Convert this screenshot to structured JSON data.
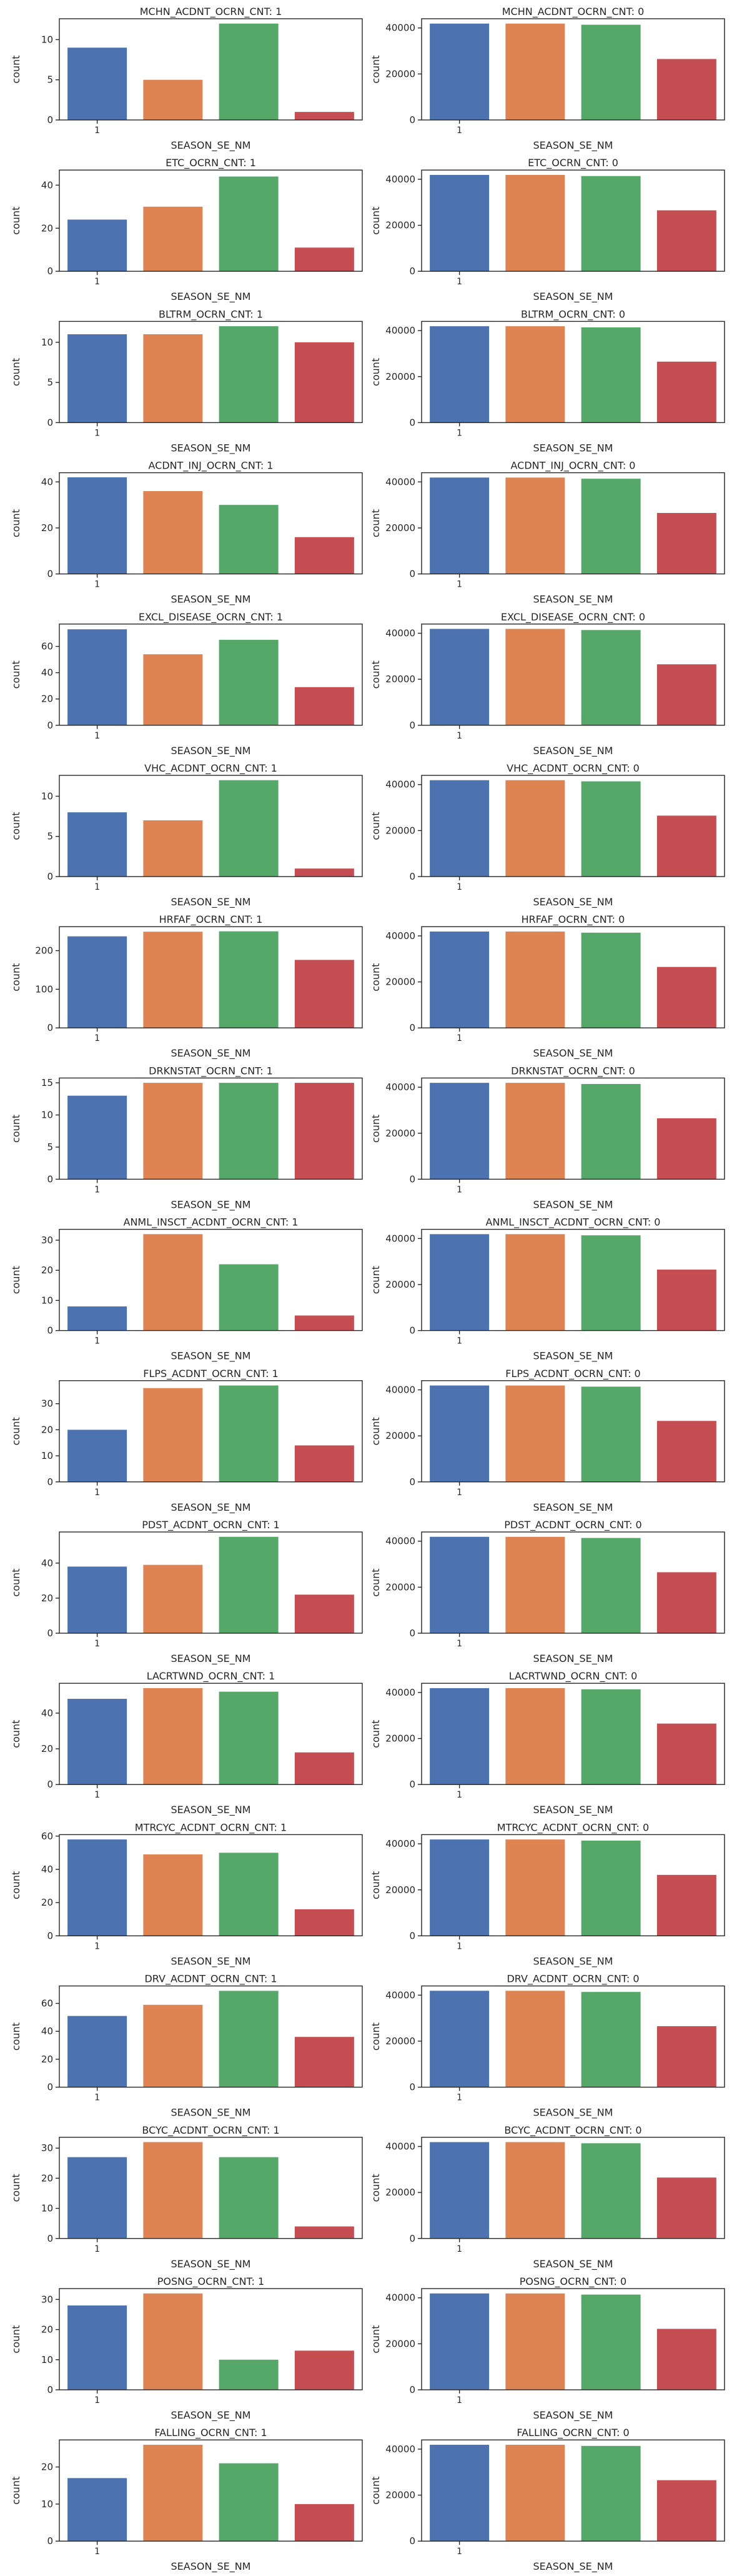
{
  "palette": [
    "#4c72b0",
    "#dd8452",
    "#55a868",
    "#c44e52"
  ],
  "chart_data": [
    {
      "type": "bar",
      "title": "MCHN_ACDNT_OCRN_CNT: 1",
      "xlabel": "SEASON_SE_NM",
      "ylabel": "count",
      "xtick_labels": [
        "1"
      ],
      "yticks": [
        "0",
        "5",
        "10"
      ],
      "ylim": [
        0,
        12.6
      ],
      "values": [
        9,
        5,
        12,
        1
      ]
    },
    {
      "type": "bar",
      "title": "MCHN_ACDNT_OCRN_CNT: 0",
      "xlabel": "SEASON_SE_NM",
      "ylabel": "count",
      "xtick_labels": [
        "1"
      ],
      "yticks": [
        "0",
        "20000",
        "40000"
      ],
      "ylim": [
        0,
        44000
      ],
      "values": [
        41900,
        41900,
        41400,
        26500
      ]
    },
    {
      "type": "bar",
      "title": "ETC_OCRN_CNT: 1",
      "xlabel": "SEASON_SE_NM",
      "ylabel": "count",
      "xtick_labels": [
        "1"
      ],
      "yticks": [
        "0",
        "20",
        "40"
      ],
      "ylim": [
        0,
        47
      ],
      "values": [
        24,
        30,
        44,
        11
      ]
    },
    {
      "type": "bar",
      "title": "ETC_OCRN_CNT: 0",
      "xlabel": "SEASON_SE_NM",
      "ylabel": "count",
      "xtick_labels": [
        "1"
      ],
      "yticks": [
        "0",
        "20000",
        "40000"
      ],
      "ylim": [
        0,
        44000
      ],
      "values": [
        41900,
        41900,
        41400,
        26500
      ]
    },
    {
      "type": "bar",
      "title": "BLTRM_OCRN_CNT: 1",
      "xlabel": "SEASON_SE_NM",
      "ylabel": "count",
      "xtick_labels": [
        "1"
      ],
      "yticks": [
        "0",
        "5",
        "10"
      ],
      "ylim": [
        0,
        12.6
      ],
      "values": [
        11,
        11,
        12,
        10
      ]
    },
    {
      "type": "bar",
      "title": "BLTRM_OCRN_CNT: 0",
      "xlabel": "SEASON_SE_NM",
      "ylabel": "count",
      "xtick_labels": [
        "1"
      ],
      "yticks": [
        "0",
        "20000",
        "40000"
      ],
      "ylim": [
        0,
        44000
      ],
      "values": [
        41900,
        41900,
        41400,
        26500
      ]
    },
    {
      "type": "bar",
      "title": "ACDNT_INJ_OCRN_CNT: 1",
      "xlabel": "SEASON_SE_NM",
      "ylabel": "count",
      "xtick_labels": [
        "1"
      ],
      "yticks": [
        "0",
        "20",
        "40"
      ],
      "ylim": [
        0,
        44
      ],
      "values": [
        42,
        36,
        30,
        16
      ]
    },
    {
      "type": "bar",
      "title": "ACDNT_INJ_OCRN_CNT: 0",
      "xlabel": "SEASON_SE_NM",
      "ylabel": "count",
      "xtick_labels": [
        "1"
      ],
      "yticks": [
        "0",
        "20000",
        "40000"
      ],
      "ylim": [
        0,
        44000
      ],
      "values": [
        41900,
        41900,
        41400,
        26500
      ]
    },
    {
      "type": "bar",
      "title": "EXCL_DISEASE_OCRN_CNT: 1",
      "xlabel": "SEASON_SE_NM",
      "ylabel": "count",
      "xtick_labels": [
        "1"
      ],
      "yticks": [
        "0",
        "20",
        "40",
        "60"
      ],
      "ylim": [
        0,
        77
      ],
      "values": [
        73,
        54,
        65,
        29
      ]
    },
    {
      "type": "bar",
      "title": "EXCL_DISEASE_OCRN_CNT: 0",
      "xlabel": "SEASON_SE_NM",
      "ylabel": "count",
      "xtick_labels": [
        "1"
      ],
      "yticks": [
        "0",
        "20000",
        "40000"
      ],
      "ylim": [
        0,
        44000
      ],
      "values": [
        41900,
        41900,
        41400,
        26500
      ]
    },
    {
      "type": "bar",
      "title": "VHC_ACDNT_OCRN_CNT: 1",
      "xlabel": "SEASON_SE_NM",
      "ylabel": "count",
      "xtick_labels": [
        "1"
      ],
      "yticks": [
        "0",
        "5",
        "10"
      ],
      "ylim": [
        0,
        12.6
      ],
      "values": [
        8,
        7,
        12,
        1
      ]
    },
    {
      "type": "bar",
      "title": "VHC_ACDNT_OCRN_CNT: 0",
      "xlabel": "SEASON_SE_NM",
      "ylabel": "count",
      "xtick_labels": [
        "1"
      ],
      "yticks": [
        "0",
        "20000",
        "40000"
      ],
      "ylim": [
        0,
        44000
      ],
      "values": [
        41900,
        41900,
        41400,
        26500
      ]
    },
    {
      "type": "bar",
      "title": "HRFAF_OCRN_CNT: 1",
      "xlabel": "SEASON_SE_NM",
      "ylabel": "count",
      "xtick_labels": [
        "1"
      ],
      "yticks": [
        "0",
        "100",
        "200"
      ],
      "ylim": [
        0,
        262
      ],
      "values": [
        237,
        249,
        250,
        176
      ]
    },
    {
      "type": "bar",
      "title": "HRFAF_OCRN_CNT: 0",
      "xlabel": "SEASON_SE_NM",
      "ylabel": "count",
      "xtick_labels": [
        "1"
      ],
      "yticks": [
        "0",
        "20000",
        "40000"
      ],
      "ylim": [
        0,
        44000
      ],
      "values": [
        41900,
        41900,
        41400,
        26500
      ]
    },
    {
      "type": "bar",
      "title": "DRKNSTAT_OCRN_CNT: 1",
      "xlabel": "SEASON_SE_NM",
      "ylabel": "count",
      "xtick_labels": [
        "1"
      ],
      "yticks": [
        "0",
        "5",
        "10",
        "15"
      ],
      "ylim": [
        0,
        15.75
      ],
      "values": [
        13,
        15,
        15,
        15
      ]
    },
    {
      "type": "bar",
      "title": "DRKNSTAT_OCRN_CNT: 0",
      "xlabel": "SEASON_SE_NM",
      "ylabel": "count",
      "xtick_labels": [
        "1"
      ],
      "yticks": [
        "0",
        "20000",
        "40000"
      ],
      "ylim": [
        0,
        44000
      ],
      "values": [
        41900,
        41900,
        41400,
        26500
      ]
    },
    {
      "type": "bar",
      "title": "ANML_INSCT_ACDNT_OCRN_CNT: 1",
      "xlabel": "SEASON_SE_NM",
      "ylabel": "count",
      "xtick_labels": [
        "1"
      ],
      "yticks": [
        "0",
        "10",
        "20",
        "30"
      ],
      "ylim": [
        0,
        33.6
      ],
      "values": [
        8,
        32,
        22,
        5
      ]
    },
    {
      "type": "bar",
      "title": "ANML_INSCT_ACDNT_OCRN_CNT: 0",
      "xlabel": "SEASON_SE_NM",
      "ylabel": "count",
      "xtick_labels": [
        "1"
      ],
      "yticks": [
        "0",
        "20000",
        "40000"
      ],
      "ylim": [
        0,
        44000
      ],
      "values": [
        41900,
        41900,
        41400,
        26500
      ]
    },
    {
      "type": "bar",
      "title": "FLPS_ACDNT_OCRN_CNT: 1",
      "xlabel": "SEASON_SE_NM",
      "ylabel": "count",
      "xtick_labels": [
        "1"
      ],
      "yticks": [
        "0",
        "10",
        "20",
        "30"
      ],
      "ylim": [
        0,
        38.85
      ],
      "values": [
        20,
        36,
        37,
        14
      ]
    },
    {
      "type": "bar",
      "title": "FLPS_ACDNT_OCRN_CNT: 0",
      "xlabel": "SEASON_SE_NM",
      "ylabel": "count",
      "xtick_labels": [
        "1"
      ],
      "yticks": [
        "0",
        "20000",
        "40000"
      ],
      "ylim": [
        0,
        44000
      ],
      "values": [
        41900,
        41900,
        41400,
        26500
      ]
    },
    {
      "type": "bar",
      "title": "PDST_ACDNT_OCRN_CNT: 1",
      "xlabel": "SEASON_SE_NM",
      "ylabel": "count",
      "xtick_labels": [
        "1"
      ],
      "yticks": [
        "0",
        "20",
        "40"
      ],
      "ylim": [
        0,
        57.75
      ],
      "values": [
        38,
        39,
        55,
        22
      ]
    },
    {
      "type": "bar",
      "title": "PDST_ACDNT_OCRN_CNT: 0",
      "xlabel": "SEASON_SE_NM",
      "ylabel": "count",
      "xtick_labels": [
        "1"
      ],
      "yticks": [
        "0",
        "20000",
        "40000"
      ],
      "ylim": [
        0,
        44000
      ],
      "values": [
        41900,
        41900,
        41400,
        26500
      ]
    },
    {
      "type": "bar",
      "title": "LACRTWND_OCRN_CNT: 1",
      "xlabel": "SEASON_SE_NM",
      "ylabel": "count",
      "xtick_labels": [
        "1"
      ],
      "yticks": [
        "0",
        "20",
        "40"
      ],
      "ylim": [
        0,
        56.7
      ],
      "values": [
        48,
        54,
        52,
        18
      ]
    },
    {
      "type": "bar",
      "title": "LACRTWND_OCRN_CNT: 0",
      "xlabel": "SEASON_SE_NM",
      "ylabel": "count",
      "xtick_labels": [
        "1"
      ],
      "yticks": [
        "0",
        "20000",
        "40000"
      ],
      "ylim": [
        0,
        44000
      ],
      "values": [
        41900,
        41900,
        41400,
        26500
      ]
    },
    {
      "type": "bar",
      "title": "MTRCYC_ACDNT_OCRN_CNT: 1",
      "xlabel": "SEASON_SE_NM",
      "ylabel": "count",
      "xtick_labels": [
        "1"
      ],
      "yticks": [
        "0",
        "20",
        "40",
        "60"
      ],
      "ylim": [
        0,
        60.9
      ],
      "values": [
        58,
        49,
        50,
        16
      ]
    },
    {
      "type": "bar",
      "title": "MTRCYC_ACDNT_OCRN_CNT: 0",
      "xlabel": "SEASON_SE_NM",
      "ylabel": "count",
      "xtick_labels": [
        "1"
      ],
      "yticks": [
        "0",
        "20000",
        "40000"
      ],
      "ylim": [
        0,
        44000
      ],
      "values": [
        41900,
        41900,
        41400,
        26500
      ]
    },
    {
      "type": "bar",
      "title": "DRV_ACDNT_OCRN_CNT: 1",
      "xlabel": "SEASON_SE_NM",
      "ylabel": "count",
      "xtick_labels": [
        "1"
      ],
      "yticks": [
        "0",
        "20",
        "40",
        "60"
      ],
      "ylim": [
        0,
        72.5
      ],
      "values": [
        51,
        59,
        69,
        36
      ]
    },
    {
      "type": "bar",
      "title": "DRV_ACDNT_OCRN_CNT: 0",
      "xlabel": "SEASON_SE_NM",
      "ylabel": "count",
      "xtick_labels": [
        "1"
      ],
      "yticks": [
        "0",
        "20000",
        "40000"
      ],
      "ylim": [
        0,
        44000
      ],
      "values": [
        41900,
        41900,
        41400,
        26500
      ]
    },
    {
      "type": "bar",
      "title": "BCYC_ACDNT_OCRN_CNT: 1",
      "xlabel": "SEASON_SE_NM",
      "ylabel": "count",
      "xtick_labels": [
        "1"
      ],
      "yticks": [
        "0",
        "10",
        "20",
        "30"
      ],
      "ylim": [
        0,
        33.6
      ],
      "values": [
        27,
        32,
        27,
        4
      ]
    },
    {
      "type": "bar",
      "title": "BCYC_ACDNT_OCRN_CNT: 0",
      "xlabel": "SEASON_SE_NM",
      "ylabel": "count",
      "xtick_labels": [
        "1"
      ],
      "yticks": [
        "0",
        "20000",
        "40000"
      ],
      "ylim": [
        0,
        44000
      ],
      "values": [
        41900,
        41900,
        41400,
        26500
      ]
    },
    {
      "type": "bar",
      "title": "POSNG_OCRN_CNT: 1",
      "xlabel": "SEASON_SE_NM",
      "ylabel": "count",
      "xtick_labels": [
        "1"
      ],
      "yticks": [
        "0",
        "10",
        "20",
        "30"
      ],
      "ylim": [
        0,
        33.6
      ],
      "values": [
        28,
        32,
        10,
        13
      ]
    },
    {
      "type": "bar",
      "title": "POSNG_OCRN_CNT: 0",
      "xlabel": "SEASON_SE_NM",
      "ylabel": "count",
      "xtick_labels": [
        "1"
      ],
      "yticks": [
        "0",
        "20000",
        "40000"
      ],
      "ylim": [
        0,
        44000
      ],
      "values": [
        41900,
        41900,
        41400,
        26500
      ]
    },
    {
      "type": "bar",
      "title": "FALLING_OCRN_CNT: 1",
      "xlabel": "SEASON_SE_NM",
      "ylabel": "count",
      "xtick_labels": [
        "1"
      ],
      "yticks": [
        "0",
        "10",
        "20"
      ],
      "ylim": [
        0,
        27.3
      ],
      "values": [
        17,
        26,
        21,
        10
      ]
    },
    {
      "type": "bar",
      "title": "FALLING_OCRN_CNT: 0",
      "xlabel": "SEASON_SE_NM",
      "ylabel": "count",
      "xtick_labels": [
        "1"
      ],
      "yticks": [
        "0",
        "20000",
        "40000"
      ],
      "ylim": [
        0,
        44000
      ],
      "values": [
        41900,
        41900,
        41400,
        26500
      ]
    }
  ]
}
